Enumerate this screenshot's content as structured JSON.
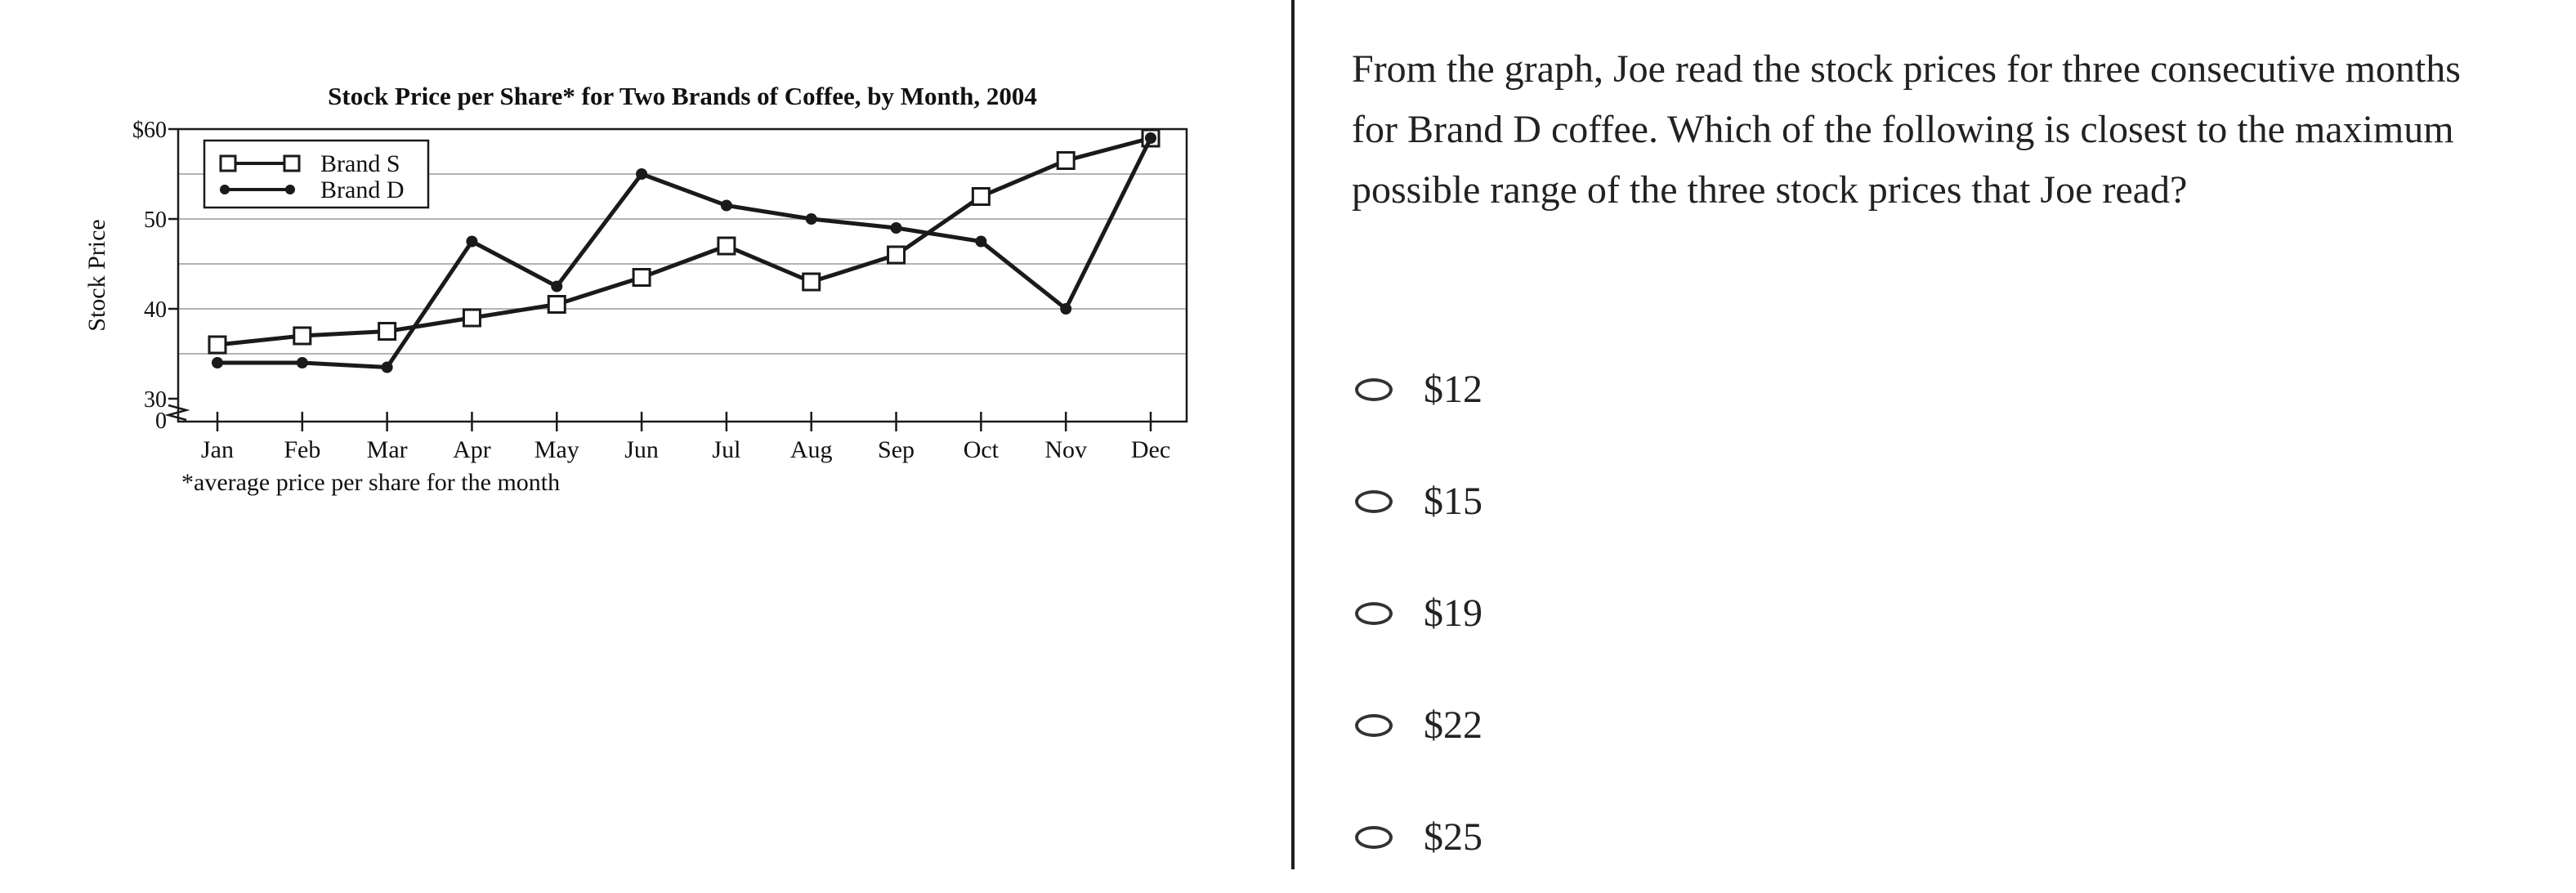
{
  "question": {
    "text": "From the graph, Joe read the stock prices for three consecutive months for Brand D coffee. Which of the following is closest to the maximum possible range of the three stock prices that Joe read?"
  },
  "choices": [
    {
      "label": "$12"
    },
    {
      "label": "$15"
    },
    {
      "label": "$19"
    },
    {
      "label": "$22"
    },
    {
      "label": "$25"
    }
  ],
  "chart_data": {
    "type": "line",
    "title": "Stock Price per Share* for Two Brands of Coffee, by Month, 2004",
    "ylabel": "Stock Price",
    "xlabel": "",
    "footnote": "*average price per share for the month",
    "categories": [
      "Jan",
      "Feb",
      "Mar",
      "Apr",
      "May",
      "Jun",
      "Jul",
      "Aug",
      "Sep",
      "Oct",
      "Nov",
      "Dec"
    ],
    "y_ticks": [
      "$60",
      "50",
      "40",
      "30",
      "0"
    ],
    "ylim": [
      30,
      60
    ],
    "axis_break": true,
    "grid": true,
    "legend_position": "top-left",
    "series": [
      {
        "name": "Brand S",
        "marker": "open-square",
        "values": [
          36,
          37,
          37.5,
          39,
          40.5,
          43.5,
          47,
          43,
          46,
          52.5,
          56.5,
          59
        ]
      },
      {
        "name": "Brand D",
        "marker": "filled-circle",
        "values": [
          34,
          34,
          33.5,
          47.5,
          42.5,
          55,
          51.5,
          50,
          49,
          47.5,
          40,
          59
        ]
      }
    ],
    "colors": {
      "line": "#1a1a1a",
      "grid": "#b4b4b4"
    }
  }
}
